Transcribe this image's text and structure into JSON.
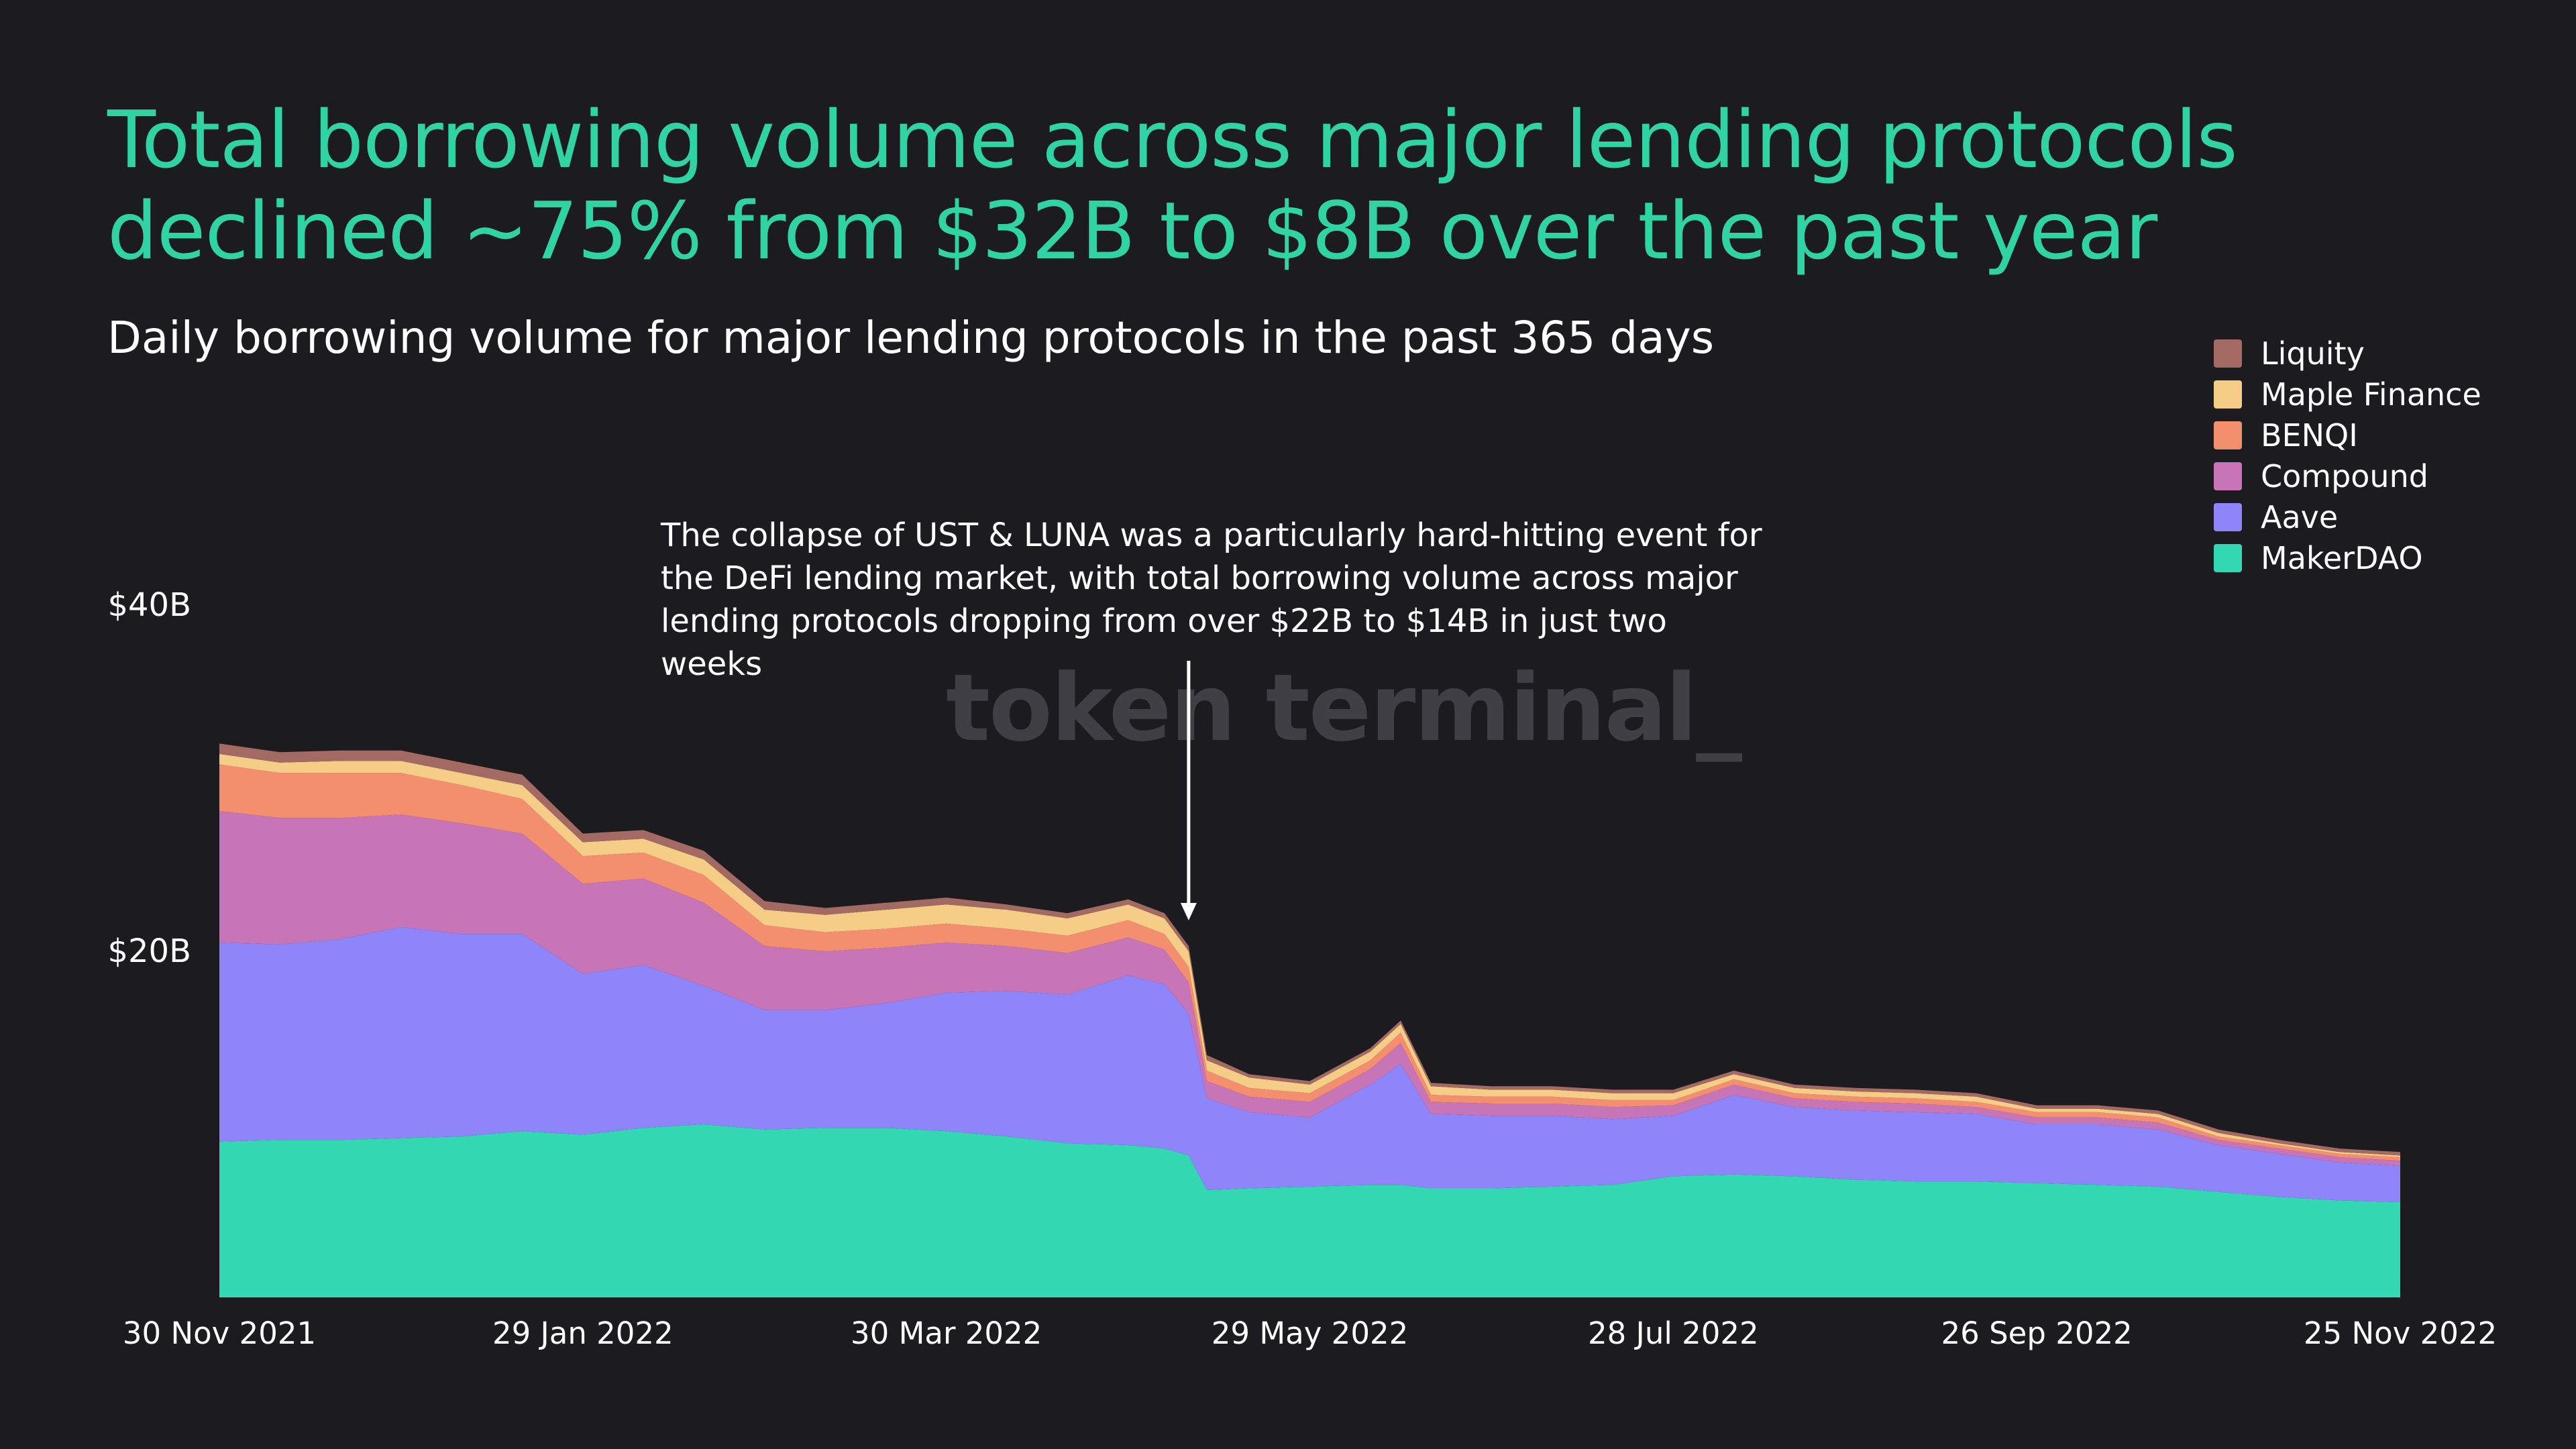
{
  "title_line1": "Total borrowing volume across major lending protocols",
  "title_line2": "declined ~75% from $32B to $8B over the past year",
  "subtitle": "Daily borrowing volume for major lending protocols in the past 365 days",
  "annotation": {
    "line1": "The collapse of UST & LUNA was a particularly hard-hitting event for",
    "line2": "the DeFi lending market, with total borrowing volume across major",
    "line3": "lending protocols dropping from over $22B to $14B in just two weeks"
  },
  "watermark": "token terminal_",
  "colors": {
    "background": "#1c1b20",
    "title": "#2fd3a4",
    "Liquity": "#a26a62",
    "Maple Finance": "#f6cd86",
    "BENQI": "#f38f6e",
    "Compound": "#c875b8",
    "Aave": "#8f85fb",
    "MakerDAO": "#33d7b1"
  },
  "legend": [
    {
      "name": "Liquity",
      "color": "#a26a62"
    },
    {
      "name": "Maple Finance",
      "color": "#f6cd86"
    },
    {
      "name": "BENQI",
      "color": "#f38f6e"
    },
    {
      "name": "Compound",
      "color": "#c875b8"
    },
    {
      "name": "Aave",
      "color": "#8f85fb"
    },
    {
      "name": "MakerDAO",
      "color": "#33d7b1"
    }
  ],
  "chart_data": {
    "type": "area",
    "stacked": true,
    "title": "Daily borrowing volume for major lending protocols in the past 365 days",
    "x_tick_labels": [
      "30 Nov 2021",
      "29 Jan 2022",
      "30 Mar 2022",
      "29 May 2022",
      "28 Jul 2022",
      "26 Sep 2022",
      "25 Nov 2022"
    ],
    "y_tick_labels": [
      "$20B",
      "$40B"
    ],
    "y_ticks": [
      20,
      40
    ],
    "ylim": [
      0,
      40
    ],
    "y_unit": "$B",
    "x_start": "2021-11-30",
    "x_end": "2022-11-25",
    "legend_position": "top-right",
    "grid": false,
    "x": [
      "2021-11-30",
      "2021-12-10",
      "2021-12-20",
      "2021-12-30",
      "2022-01-09",
      "2022-01-19",
      "2022-01-29",
      "2022-02-08",
      "2022-02-18",
      "2022-02-28",
      "2022-03-10",
      "2022-03-20",
      "2022-03-30",
      "2022-04-09",
      "2022-04-19",
      "2022-04-29",
      "2022-05-05",
      "2022-05-09",
      "2022-05-12",
      "2022-05-19",
      "2022-05-29",
      "2022-06-08",
      "2022-06-13",
      "2022-06-18",
      "2022-06-28",
      "2022-07-08",
      "2022-07-18",
      "2022-07-28",
      "2022-08-07",
      "2022-08-17",
      "2022-08-27",
      "2022-09-06",
      "2022-09-16",
      "2022-09-26",
      "2022-10-06",
      "2022-10-16",
      "2022-10-26",
      "2022-11-05",
      "2022-11-15",
      "2022-11-25"
    ],
    "series": [
      {
        "name": "MakerDAO",
        "values": [
          9.0,
          9.1,
          9.1,
          9.2,
          9.3,
          9.6,
          9.4,
          9.8,
          10.0,
          9.7,
          9.8,
          9.8,
          9.6,
          9.3,
          8.9,
          8.8,
          8.6,
          8.2,
          6.2,
          6.3,
          6.4,
          6.5,
          6.5,
          6.3,
          6.3,
          6.4,
          6.5,
          7.0,
          7.1,
          7.0,
          6.8,
          6.7,
          6.7,
          6.6,
          6.5,
          6.4,
          6.1,
          5.8,
          5.6,
          5.5
        ]
      },
      {
        "name": "Aave",
        "values": [
          11.5,
          11.3,
          11.6,
          12.2,
          11.7,
          11.4,
          9.3,
          9.4,
          8.0,
          6.9,
          6.8,
          7.2,
          8.0,
          8.4,
          8.6,
          9.8,
          9.5,
          8.2,
          5.3,
          4.4,
          4.0,
          5.8,
          7.0,
          4.3,
          4.2,
          4.1,
          3.8,
          3.5,
          4.6,
          4.0,
          4.0,
          4.0,
          3.9,
          3.4,
          3.5,
          3.3,
          2.7,
          2.5,
          2.2,
          2.1
        ]
      },
      {
        "name": "Compound",
        "values": [
          7.6,
          7.3,
          7.0,
          6.5,
          6.4,
          5.8,
          5.2,
          5.0,
          4.8,
          3.7,
          3.4,
          3.2,
          2.9,
          2.6,
          2.4,
          2.2,
          2.0,
          1.8,
          1.0,
          0.9,
          0.9,
          0.9,
          1.2,
          0.7,
          0.7,
          0.7,
          0.7,
          0.6,
          0.6,
          0.5,
          0.5,
          0.5,
          0.4,
          0.4,
          0.4,
          0.4,
          0.3,
          0.3,
          0.3,
          0.3
        ]
      },
      {
        "name": "BENQI",
        "values": [
          2.7,
          2.6,
          2.6,
          2.4,
          2.2,
          2.0,
          1.6,
          1.5,
          1.6,
          1.2,
          1.1,
          1.1,
          1.1,
          1.0,
          1.0,
          1.0,
          0.9,
          0.9,
          0.6,
          0.5,
          0.5,
          0.5,
          0.6,
          0.4,
          0.4,
          0.4,
          0.4,
          0.3,
          0.3,
          0.3,
          0.3,
          0.3,
          0.3,
          0.3,
          0.3,
          0.3,
          0.2,
          0.2,
          0.2,
          0.2
        ]
      },
      {
        "name": "Maple Finance",
        "values": [
          0.6,
          0.6,
          0.7,
          0.7,
          0.7,
          0.8,
          0.8,
          0.8,
          0.9,
          0.9,
          1.0,
          1.1,
          1.1,
          1.1,
          1.0,
          0.9,
          0.9,
          0.9,
          0.6,
          0.6,
          0.5,
          0.5,
          0.5,
          0.5,
          0.4,
          0.4,
          0.4,
          0.4,
          0.3,
          0.3,
          0.3,
          0.3,
          0.3,
          0.2,
          0.2,
          0.2,
          0.2,
          0.1,
          0.1,
          0.1
        ]
      },
      {
        "name": "Liquity",
        "values": [
          0.6,
          0.6,
          0.6,
          0.6,
          0.6,
          0.6,
          0.5,
          0.5,
          0.5,
          0.5,
          0.4,
          0.4,
          0.4,
          0.3,
          0.3,
          0.3,
          0.3,
          0.3,
          0.3,
          0.2,
          0.2,
          0.2,
          0.2,
          0.2,
          0.2,
          0.2,
          0.2,
          0.2,
          0.2,
          0.2,
          0.2,
          0.2,
          0.2,
          0.2,
          0.2,
          0.2,
          0.2,
          0.2,
          0.2,
          0.2
        ]
      }
    ],
    "annotations": [
      {
        "text": "The collapse of UST & LUNA was a particularly hard-hitting event for the DeFi lending market, with total borrowing volume across major lending protocols dropping from over $22B to $14B in just two weeks",
        "points_to": "2022-05-09"
      }
    ]
  }
}
